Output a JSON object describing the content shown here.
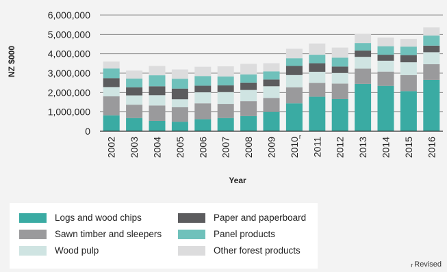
{
  "chart_data": {
    "type": "bar",
    "stacked": true,
    "xlabel": "Year",
    "ylabel": "NZ $000",
    "ylim": [
      0,
      6000000
    ],
    "yticks": [
      0,
      1000000,
      2000000,
      3000000,
      4000000,
      5000000,
      6000000
    ],
    "ytick_labels": [
      "0",
      "1,000,000",
      "2,000,000",
      "3,000,000",
      "4,000,000",
      "5,000,000",
      "6,000,000"
    ],
    "categories": [
      "2002",
      "2003",
      "2004",
      "2005",
      "2006",
      "2007",
      "2008",
      "2009",
      "2010",
      "2011",
      "2012",
      "2013",
      "2014",
      "2015",
      "2016"
    ],
    "revised_category_marks": [
      "",
      "",
      "",
      "",
      "",
      "",
      "",
      "",
      "r",
      "",
      "",
      "",
      "",
      "",
      ""
    ],
    "grid": true,
    "legend_position": "bottom",
    "series": [
      {
        "name": "Logs and wood chips",
        "color": "#3aaba3",
        "values": [
          820000,
          680000,
          530000,
          490000,
          620000,
          680000,
          780000,
          1000000,
          1440000,
          1780000,
          1660000,
          2440000,
          2340000,
          2070000,
          2650000
        ]
      },
      {
        "name": "Sawn timber and sleepers",
        "color": "#9a9a9c",
        "values": [
          980000,
          690000,
          800000,
          750000,
          820000,
          730000,
          770000,
          720000,
          830000,
          720000,
          800000,
          790000,
          740000,
          830000,
          810000
        ]
      },
      {
        "name": "Wood pulp",
        "color": "#cfe4e2",
        "values": [
          480000,
          480000,
          530000,
          410000,
          570000,
          610000,
          580000,
          600000,
          630000,
          570000,
          550000,
          610000,
          560000,
          660000,
          620000
        ]
      },
      {
        "name": "Paper and paperboard",
        "color": "#5c5c5e",
        "values": [
          460000,
          420000,
          460000,
          550000,
          340000,
          350000,
          380000,
          350000,
          470000,
          440000,
          330000,
          330000,
          310000,
          370000,
          340000
        ]
      },
      {
        "name": "Panel products",
        "color": "#6fc1bb",
        "values": [
          500000,
          450000,
          570000,
          510000,
          500000,
          460000,
          420000,
          420000,
          400000,
          440000,
          460000,
          380000,
          440000,
          440000,
          520000
        ]
      },
      {
        "name": "Other forest products",
        "color": "#dcdcdd",
        "values": [
          360000,
          410000,
          480000,
          480000,
          480000,
          520000,
          550000,
          420000,
          490000,
          580000,
          520000,
          470000,
          450000,
          400000,
          420000
        ]
      }
    ]
  },
  "footnote": {
    "mark": "r",
    "text": "Revised"
  }
}
